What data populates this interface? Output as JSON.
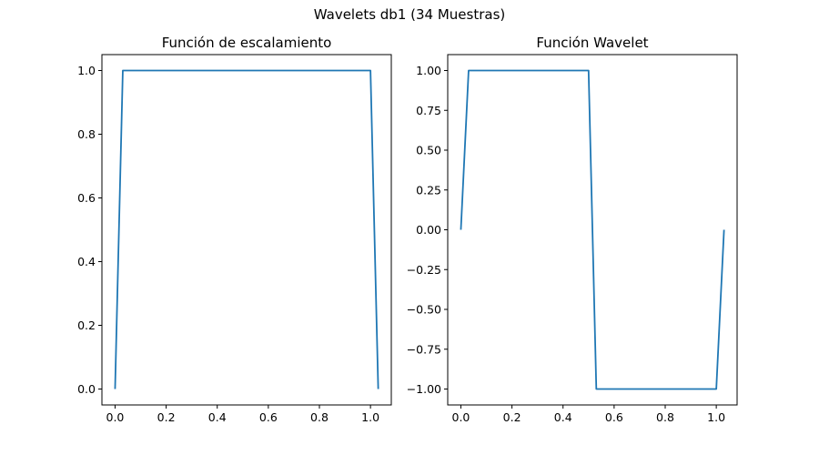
{
  "figure": {
    "suptitle": "Wavelets db1 (34 Muestras)"
  },
  "chart_data": [
    {
      "type": "line",
      "title": "Función de escalamiento",
      "xlabel": "",
      "ylabel": "",
      "xlim": [
        -0.0515,
        1.0815
      ],
      "ylim": [
        -0.05,
        1.05
      ],
      "xticks": [
        0.0,
        0.2,
        0.4,
        0.6,
        0.8,
        1.0
      ],
      "xtick_labels": [
        "0.0",
        "0.2",
        "0.4",
        "0.6",
        "0.8",
        "1.0"
      ],
      "yticks": [
        0.0,
        0.2,
        0.4,
        0.6,
        0.8,
        1.0
      ],
      "ytick_labels": [
        "0.0",
        "0.2",
        "0.4",
        "0.6",
        "0.8",
        "1.0"
      ],
      "grid": false,
      "color": "#1f77b4",
      "series": [
        {
          "x": [
            0.0,
            0.0303,
            1.0,
            1.0303
          ],
          "y": [
            0.0,
            1.0,
            1.0,
            0.0
          ]
        }
      ]
    },
    {
      "type": "line",
      "title": "Función Wavelet",
      "xlabel": "",
      "ylabel": "",
      "xlim": [
        -0.0515,
        1.0815
      ],
      "ylim": [
        -1.1,
        1.1
      ],
      "xticks": [
        0.0,
        0.2,
        0.4,
        0.6,
        0.8,
        1.0
      ],
      "xtick_labels": [
        "0.0",
        "0.2",
        "0.4",
        "0.6",
        "0.8",
        "1.0"
      ],
      "yticks": [
        1.0,
        0.75,
        0.5,
        0.25,
        0.0,
        -0.25,
        -0.5,
        -0.75,
        -1.0
      ],
      "ytick_labels": [
        "1.00",
        "0.75",
        "0.50",
        "0.25",
        "0.00",
        "−0.25",
        "−0.50",
        "−0.75",
        "−1.00"
      ],
      "grid": false,
      "color": "#1f77b4",
      "series": [
        {
          "x": [
            0.0,
            0.0303,
            0.5,
            0.5303,
            1.0,
            1.0303
          ],
          "y": [
            0.0,
            1.0,
            1.0,
            -1.0,
            -1.0,
            0.0
          ]
        }
      ]
    }
  ]
}
